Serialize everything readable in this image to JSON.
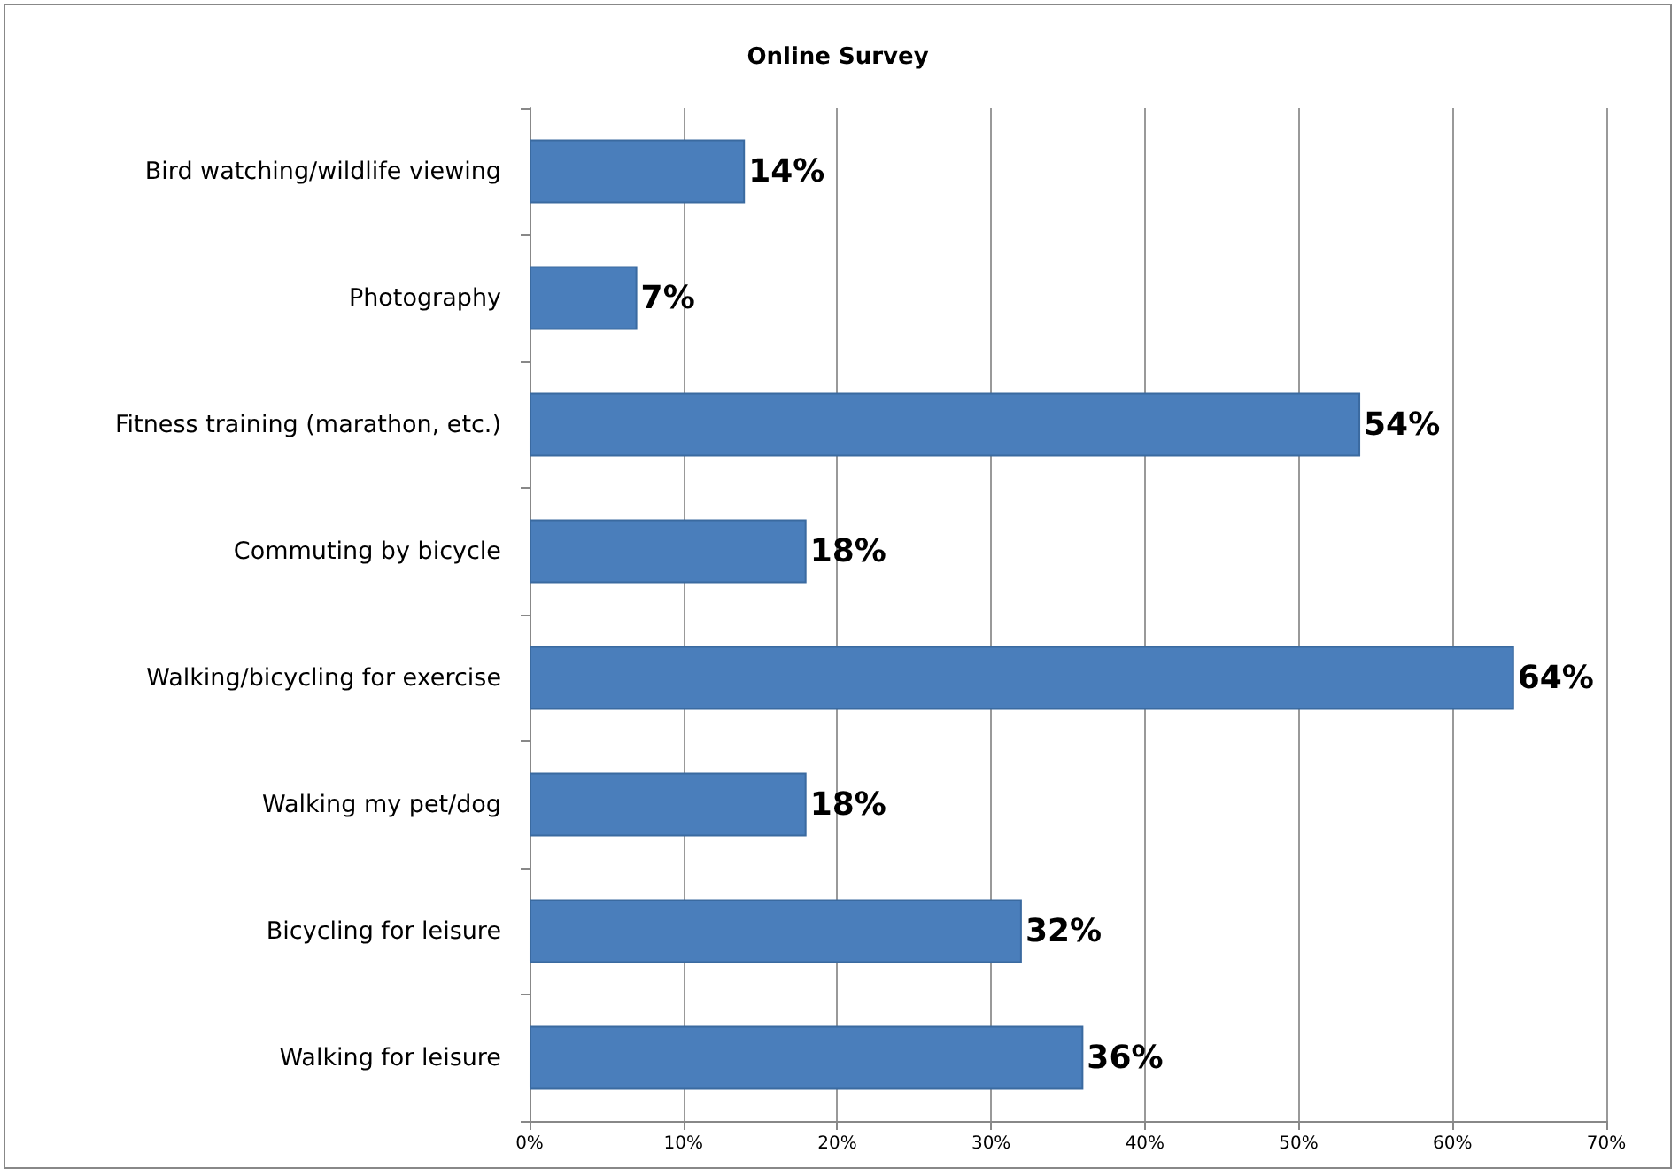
{
  "chart_data": {
    "type": "bar",
    "orientation": "horizontal",
    "title": "Online Survey",
    "categories": [
      "Bird watching/wildlife viewing",
      "Photography",
      "Fitness training (marathon, etc.)",
      "Commuting by bicycle",
      "Walking/bicycling for exercise",
      "Walking my pet/dog",
      "Bicycling for leisure",
      "Walking for leisure"
    ],
    "values": [
      14,
      7,
      54,
      18,
      64,
      18,
      32,
      36
    ],
    "value_labels": [
      "14%",
      "7%",
      "54%",
      "18%",
      "64%",
      "18%",
      "32%",
      "36%"
    ],
    "color": "#4a7ebb",
    "xlim": [
      0,
      70
    ],
    "xticks": [
      {
        "value": 0,
        "label": "0%"
      },
      {
        "value": 10,
        "label": "10%"
      },
      {
        "value": 20,
        "label": "20%"
      },
      {
        "value": 30,
        "label": "30%"
      },
      {
        "value": 40,
        "label": "40%"
      },
      {
        "value": 50,
        "label": "50%"
      },
      {
        "value": 60,
        "label": "60%"
      },
      {
        "value": 70,
        "label": "70%"
      }
    ],
    "grid": "x"
  }
}
